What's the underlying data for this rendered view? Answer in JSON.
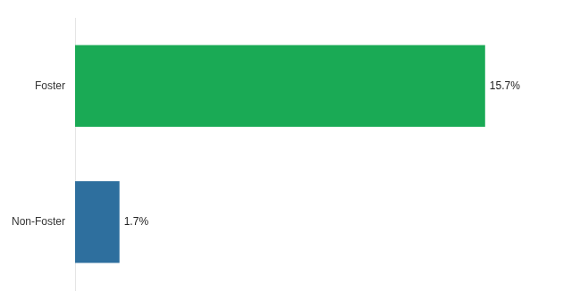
{
  "chart_data": {
    "type": "bar",
    "orientation": "horizontal",
    "categories": [
      "Foster",
      "Non-Foster"
    ],
    "values": [
      15.7,
      1.7
    ],
    "value_labels": [
      "15.7%",
      "1.7%"
    ],
    "colors": [
      "#1aaa55",
      "#2e6f9e"
    ],
    "xlim": [
      0,
      18
    ],
    "grid": false,
    "legend": false,
    "data_labels": true,
    "tick_labels": "y"
  }
}
